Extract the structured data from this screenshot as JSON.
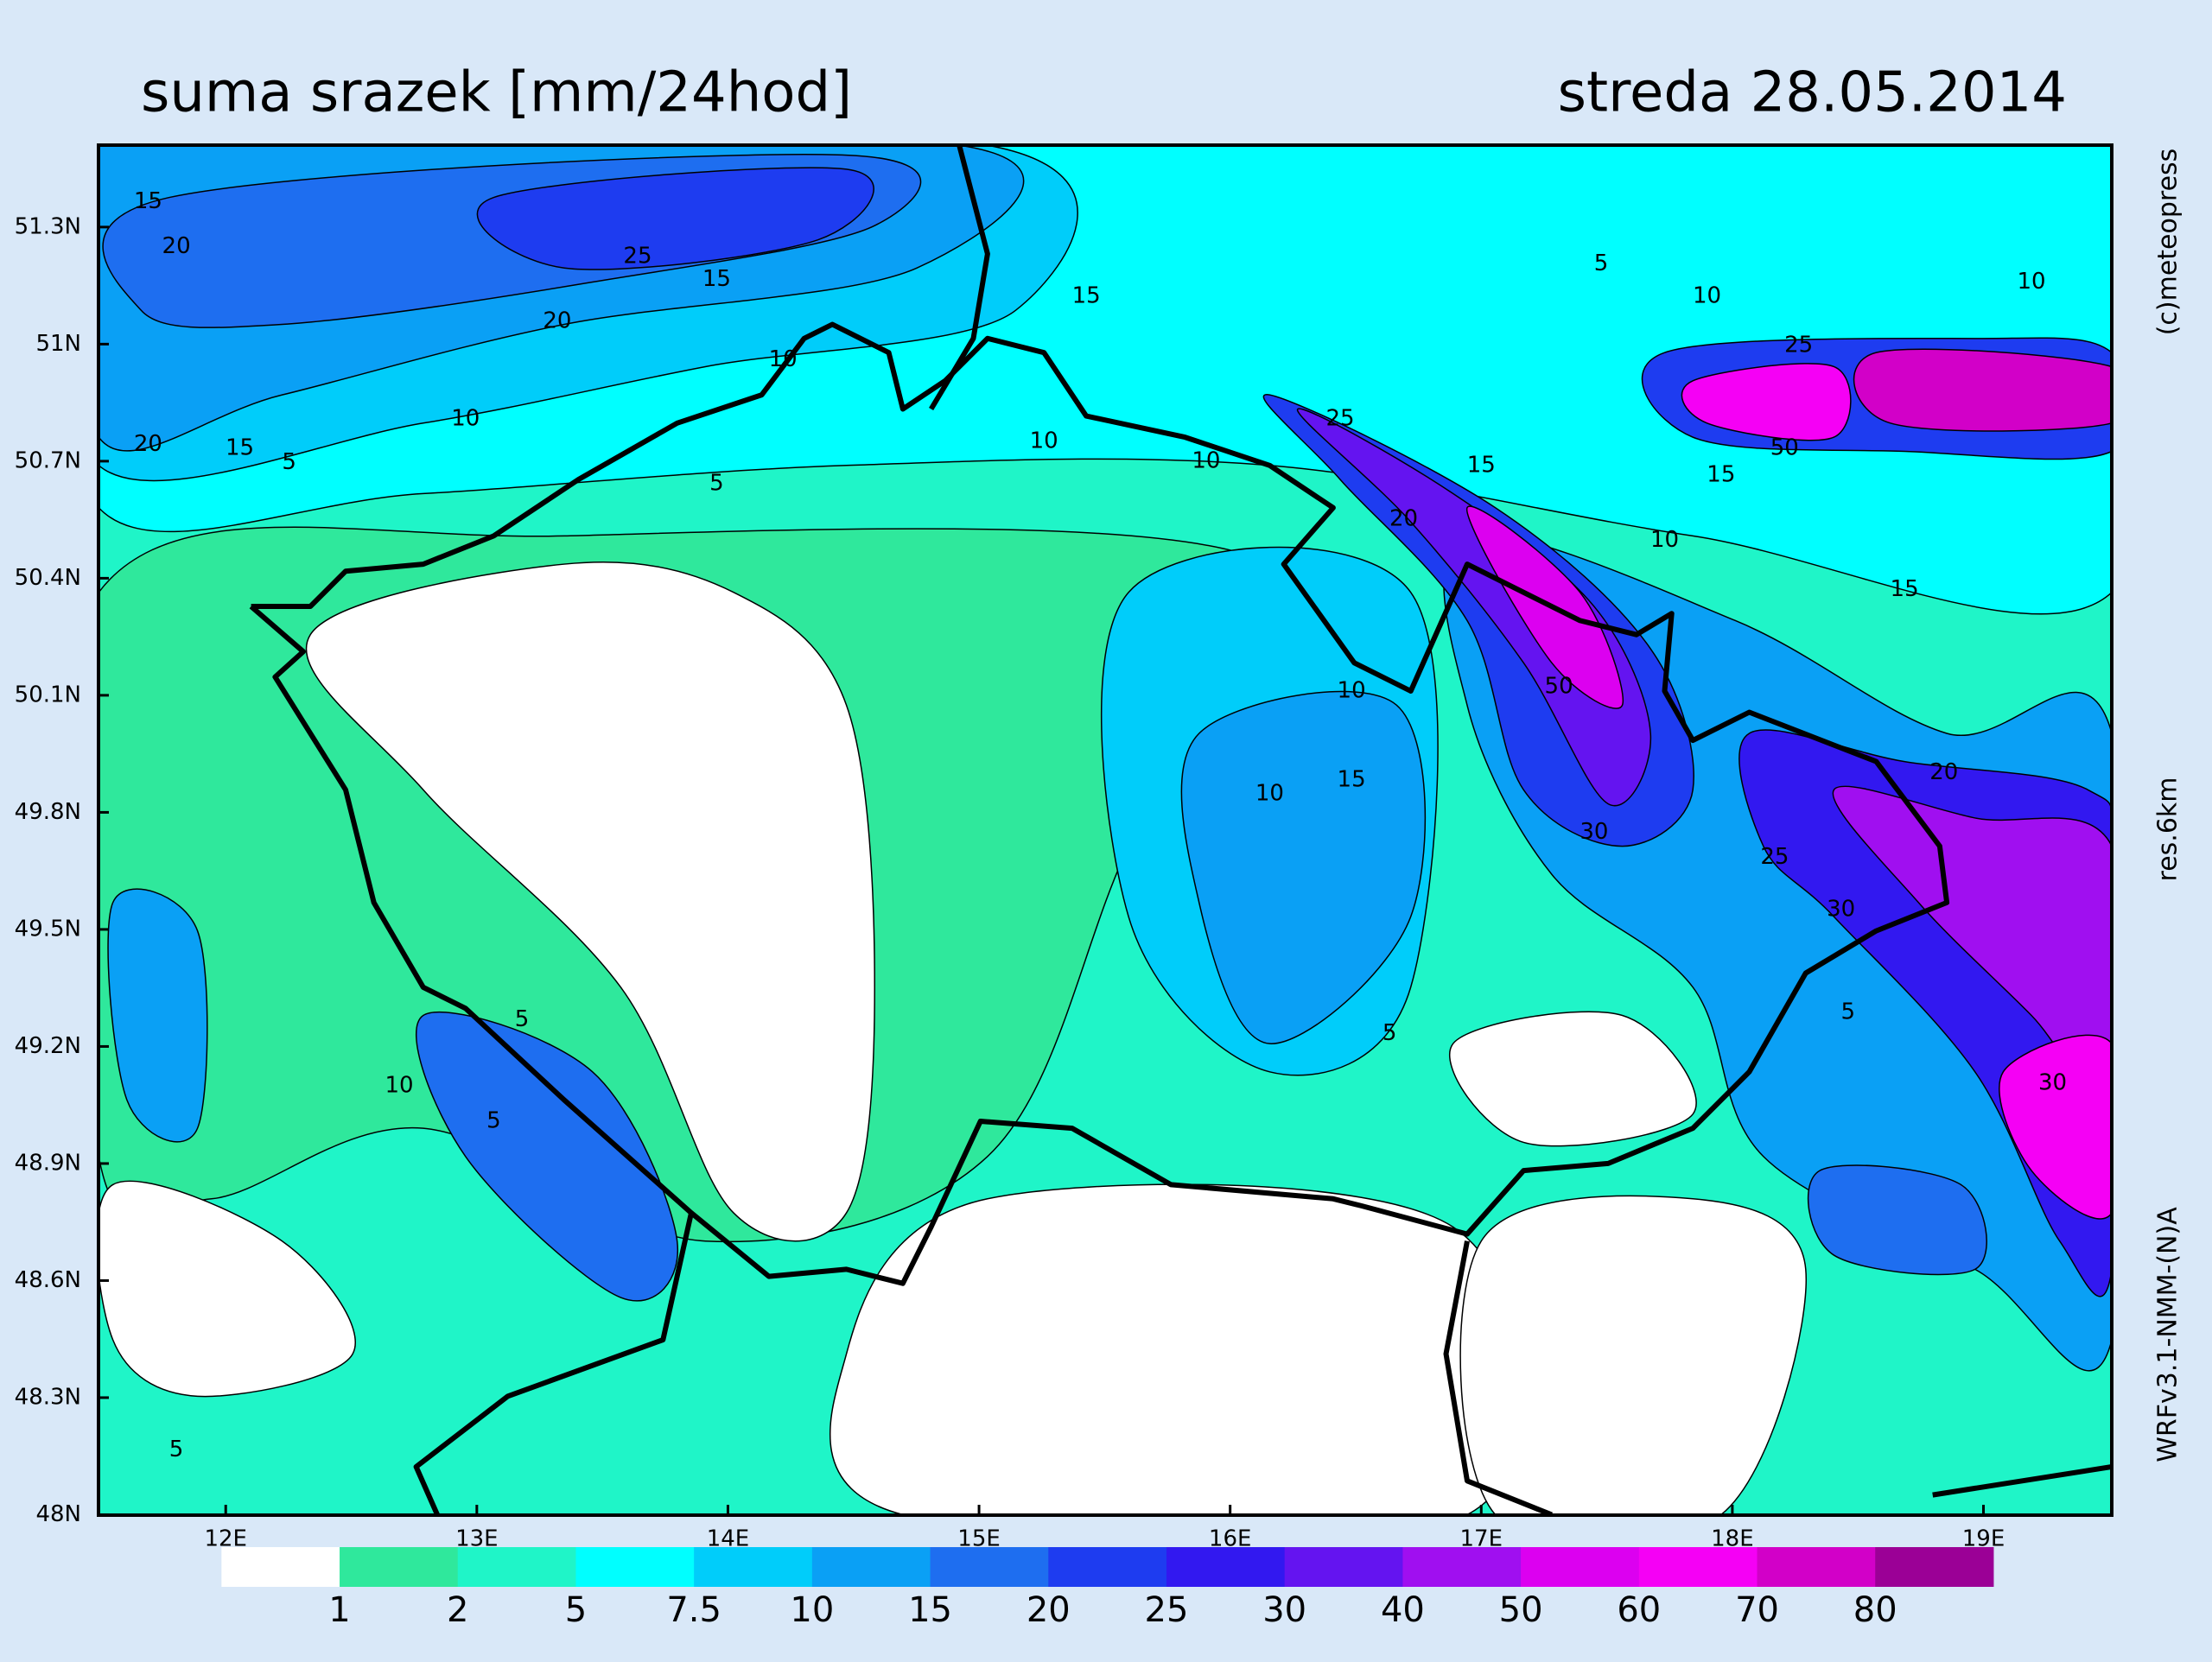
{
  "header": {
    "title": "suma srazek [mm/24hod]",
    "date": "streda 28.05.2014"
  },
  "axes": {
    "lat_labels": [
      "51.3N",
      "51N",
      "50.7N",
      "50.4N",
      "50.1N",
      "49.8N",
      "49.5N",
      "49.2N",
      "48.9N",
      "48.6N",
      "48.3N",
      "48N"
    ],
    "lon_labels": [
      "12E",
      "13E",
      "14E",
      "15E",
      "16E",
      "17E",
      "18E",
      "19E"
    ]
  },
  "legend": {
    "levels": [
      1,
      2,
      5,
      7.5,
      10,
      15,
      20,
      25,
      30,
      40,
      50,
      60,
      70,
      80
    ],
    "colors": [
      "#ffffff",
      "#2fe89c",
      "#1ff5c8",
      "#00ffff",
      "#00cdfa",
      "#0aa0f5",
      "#1e6ef0",
      "#1e3cf0",
      "#3218f0",
      "#6414f0",
      "#a00ff0",
      "#dc00f0",
      "#f500f5",
      "#d200c8",
      "#9b0096"
    ]
  },
  "contour_labels": [
    15,
    20,
    25,
    15,
    20,
    10,
    20,
    15,
    5,
    10,
    5,
    10,
    15,
    25,
    10,
    5,
    10,
    25,
    20,
    15,
    50,
    15,
    10,
    15,
    10,
    50,
    10,
    15,
    10,
    30,
    5,
    25,
    20,
    30,
    5,
    5,
    10,
    5,
    5,
    30
  ],
  "side": {
    "copyright": "(c)meteopress",
    "resolution": "res.6km",
    "model": "WRFv3.1-NMM-(N)A"
  }
}
